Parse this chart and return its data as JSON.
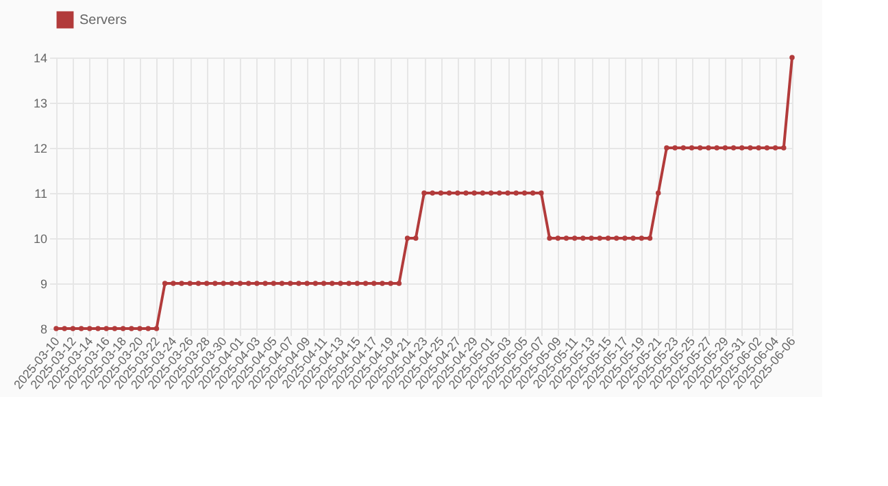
{
  "chart_data": {
    "type": "line",
    "categories": [
      "2025-03-10",
      null,
      "2025-03-12",
      null,
      "2025-03-14",
      null,
      "2025-03-16",
      null,
      "2025-03-18",
      null,
      "2025-03-20",
      null,
      "2025-03-22",
      null,
      "2025-03-24",
      null,
      "2025-03-26",
      null,
      "2025-03-28",
      null,
      "2025-03-30",
      null,
      "2025-04-01",
      null,
      "2025-04-03",
      null,
      "2025-04-05",
      null,
      "2025-04-07",
      null,
      "2025-04-09",
      null,
      "2025-04-11",
      null,
      "2025-04-13",
      null,
      "2025-04-15",
      null,
      "2025-04-17",
      null,
      "2025-04-19",
      null,
      "2025-04-21",
      null,
      "2025-04-23",
      null,
      "2025-04-25",
      null,
      "2025-04-27",
      null,
      "2025-04-29",
      null,
      "2025-05-01",
      null,
      "2025-05-03",
      null,
      "2025-05-05",
      null,
      "2025-05-07",
      null,
      "2025-05-09",
      null,
      "2025-05-11",
      null,
      "2025-05-13",
      null,
      "2025-05-15",
      null,
      "2025-05-17",
      null,
      "2025-05-19",
      null,
      "2025-05-21",
      null,
      "2025-05-23",
      null,
      "2025-05-25",
      null,
      "2025-05-27",
      null,
      "2025-05-29",
      null,
      "2025-05-31",
      null,
      "2025-06-02",
      null,
      "2025-06-04",
      null,
      "2025-06-06"
    ],
    "series": [
      {
        "name": "Servers",
        "color": "#b23b3b",
        "values": [
          8,
          8,
          8,
          8,
          8,
          8,
          8,
          8,
          8,
          8,
          8,
          8,
          8,
          9,
          9,
          9,
          9,
          9,
          9,
          9,
          9,
          9,
          9,
          9,
          9,
          9,
          9,
          9,
          9,
          9,
          9,
          9,
          9,
          9,
          9,
          9,
          9,
          9,
          9,
          9,
          9,
          9,
          10,
          10,
          11,
          11,
          11,
          11,
          11,
          11,
          11,
          11,
          11,
          11,
          11,
          11,
          11,
          11,
          11,
          10,
          10,
          10,
          10,
          10,
          10,
          10,
          10,
          10,
          10,
          10,
          10,
          10,
          11,
          12,
          12,
          12,
          12,
          12,
          12,
          12,
          12,
          12,
          12,
          12,
          12,
          12,
          12,
          12,
          14
        ]
      }
    ],
    "ylim": [
      8,
      14
    ],
    "yticks": [
      8,
      9,
      10,
      11,
      12,
      13,
      14
    ],
    "grid": true,
    "legend": "top",
    "marker": "circle",
    "line_style": "solid"
  }
}
